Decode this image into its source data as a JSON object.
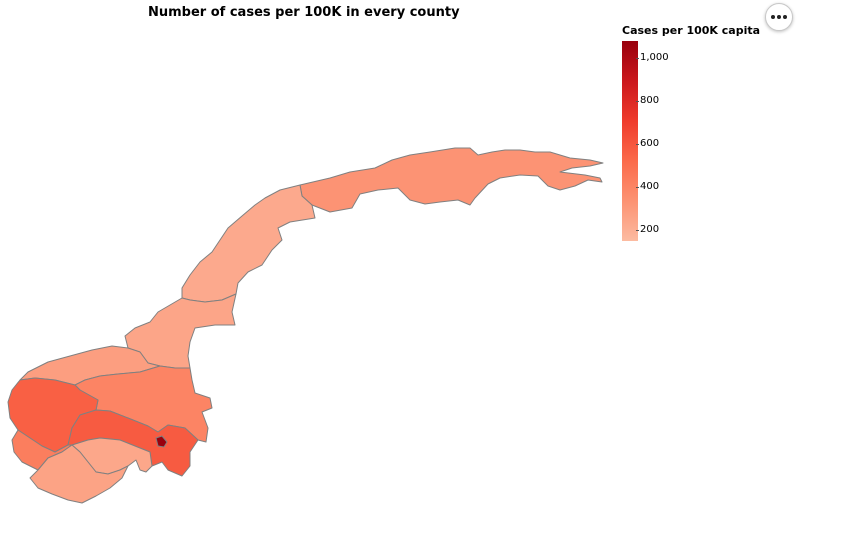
{
  "title": "Number of cases per 100K in every county",
  "legend": {
    "title": "Cases per 100K capita",
    "min": 150,
    "max": 1080,
    "ticks": [
      {
        "value": 1000,
        "label": "1,000"
      },
      {
        "value": 800,
        "label": "800"
      },
      {
        "value": 600,
        "label": "600"
      },
      {
        "value": 400,
        "label": "400"
      },
      {
        "value": 200,
        "label": "200"
      }
    ],
    "colors": [
      "#fcbba1",
      "#fc9272",
      "#fb6a4a",
      "#ef3b2c",
      "#cb181d",
      "#99000d"
    ]
  },
  "counties": [
    {
      "id": "troms-finnmark",
      "value": 330
    },
    {
      "id": "nordland",
      "value": 230
    },
    {
      "id": "trondelag",
      "value": 250
    },
    {
      "id": "more-romsdal",
      "value": 280
    },
    {
      "id": "innlandet",
      "value": 400
    },
    {
      "id": "vestland",
      "value": 560
    },
    {
      "id": "viken",
      "value": 580
    },
    {
      "id": "rogaland",
      "value": 430
    },
    {
      "id": "vestfold-telemark",
      "value": 240
    },
    {
      "id": "agder",
      "value": 260
    },
    {
      "id": "oslo",
      "value": 1080
    }
  ],
  "icons": {
    "actions": "more-horizontal-icon"
  }
}
